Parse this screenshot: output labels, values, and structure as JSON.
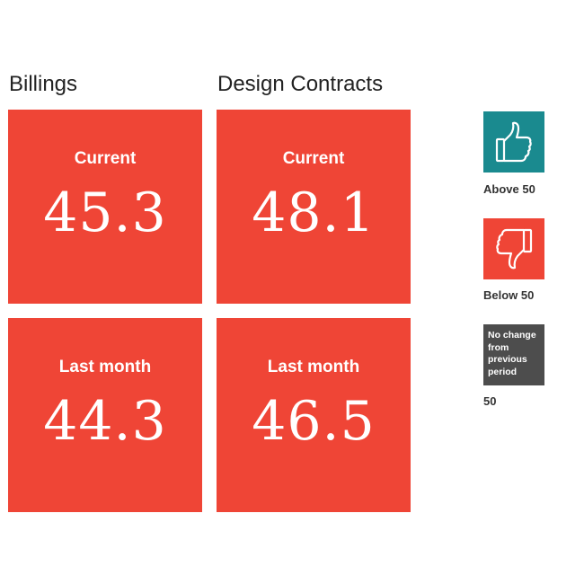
{
  "colors": {
    "below": "#ef4536",
    "above": "#1a8a8f",
    "neutral": "#4d4d4d"
  },
  "columns": [
    {
      "title": "Billings",
      "current_label": "Current",
      "current_value": "45.3",
      "last_label": "Last month",
      "last_value": "44.3"
    },
    {
      "title": "Design Contracts",
      "current_label": "Current",
      "current_value": "48.1",
      "last_label": "Last month",
      "last_value": "46.5"
    }
  ],
  "legend": {
    "above": {
      "icon": "thumbs-up-icon",
      "label": "Above 50"
    },
    "below": {
      "icon": "thumbs-down-icon",
      "label": "Below 50"
    },
    "neutral": {
      "text": "No change from previous period",
      "label": "50"
    }
  }
}
